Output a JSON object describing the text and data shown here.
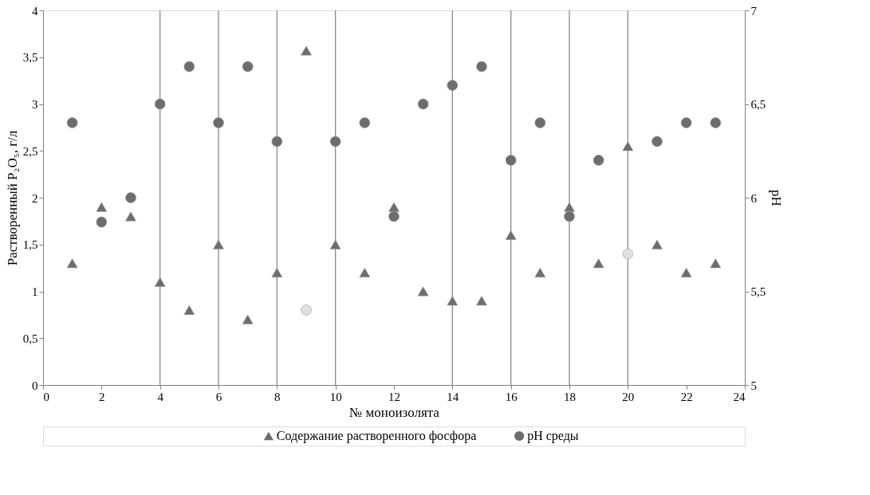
{
  "chart_data": {
    "type": "scatter",
    "xlabel": "№ моноизолята",
    "ylabel": "Растворенный P₂O₅, г/л",
    "y2label": "pH",
    "x": [
      1,
      2,
      3,
      4,
      5,
      6,
      7,
      8,
      9,
      10,
      11,
      12,
      13,
      14,
      15,
      16,
      17,
      18,
      19,
      20,
      21,
      22,
      23
    ],
    "series": [
      {
        "name": "Содержание растворенного фосфора",
        "color": "#6d6d6d",
        "marker": "triangle",
        "values": [
          1.3,
          1.9,
          1.8,
          1.1,
          0.8,
          1.5,
          0.7,
          1.2,
          3.57,
          1.5,
          1.2,
          1.9,
          1.0,
          0.9,
          0.9,
          1.6,
          1.2,
          1.9,
          1.3,
          2.55,
          1.5,
          1.2,
          1.3
        ]
      },
      {
        "name": "pH среды",
        "color": "#6d6d6d",
        "marker": "circle",
        "axis": "y2",
        "values": [
          6.4,
          5.87,
          6.0,
          6.5,
          6.7,
          6.4,
          6.7,
          6.3,
          5.4,
          6.3,
          6.4,
          5.9,
          6.5,
          6.6,
          6.7,
          6.2,
          6.4,
          5.9,
          6.2,
          5.7,
          6.3,
          6.4,
          6.4
        ],
        "colors": [
          "#6d6d6d",
          "#6d6d6d",
          "#6d6d6d",
          "#6d6d6d",
          "#6d6d6d",
          "#6d6d6d",
          "#6d6d6d",
          "#6d6d6d",
          "#e0e0e0",
          "#6d6d6d",
          "#6d6d6d",
          "#6d6d6d",
          "#6d6d6d",
          "#6d6d6d",
          "#6d6d6d",
          "#6d6d6d",
          "#6d6d6d",
          "#6d6d6d",
          "#6d6d6d",
          "#e0e0e0",
          "#6d6d6d",
          "#6d6d6d",
          "#6d6d6d"
        ]
      }
    ],
    "xlim": [
      0,
      24
    ],
    "xticks": [
      0,
      2,
      4,
      6,
      8,
      10,
      12,
      14,
      16,
      18,
      20,
      22,
      24
    ],
    "ylim": [
      0,
      4
    ],
    "yticks": [
      0,
      {
        "value": 0.5,
        "label": "0,5"
      },
      1,
      {
        "value": 1.5,
        "label": "1,5"
      },
      2,
      {
        "value": 2.5,
        "label": "2,5"
      },
      3,
      {
        "value": 3.5,
        "label": "3,5"
      },
      4
    ],
    "y2lim": [
      5,
      7
    ],
    "y2ticks": [
      5,
      {
        "value": 5.5,
        "label": "5,5"
      },
      6,
      {
        "value": 6.5,
        "label": "6,5"
      },
      7
    ],
    "ref_lines": [
      {
        "axis": "x",
        "value": 4,
        "color": "#808080"
      },
      {
        "axis": "x",
        "value": 6,
        "color": "#808080"
      },
      {
        "axis": "x",
        "value": 8,
        "color": "#808080"
      },
      {
        "axis": "x",
        "value": 10,
        "color": "#808080"
      },
      {
        "axis": "x",
        "value": 14,
        "color": "#808080"
      },
      {
        "axis": "x",
        "value": 16,
        "color": "#808080"
      },
      {
        "axis": "x",
        "value": 18,
        "color": "#808080"
      },
      {
        "axis": "x",
        "value": 20,
        "color": "#808080"
      }
    ],
    "legend": "bottom",
    "grid": false
  }
}
